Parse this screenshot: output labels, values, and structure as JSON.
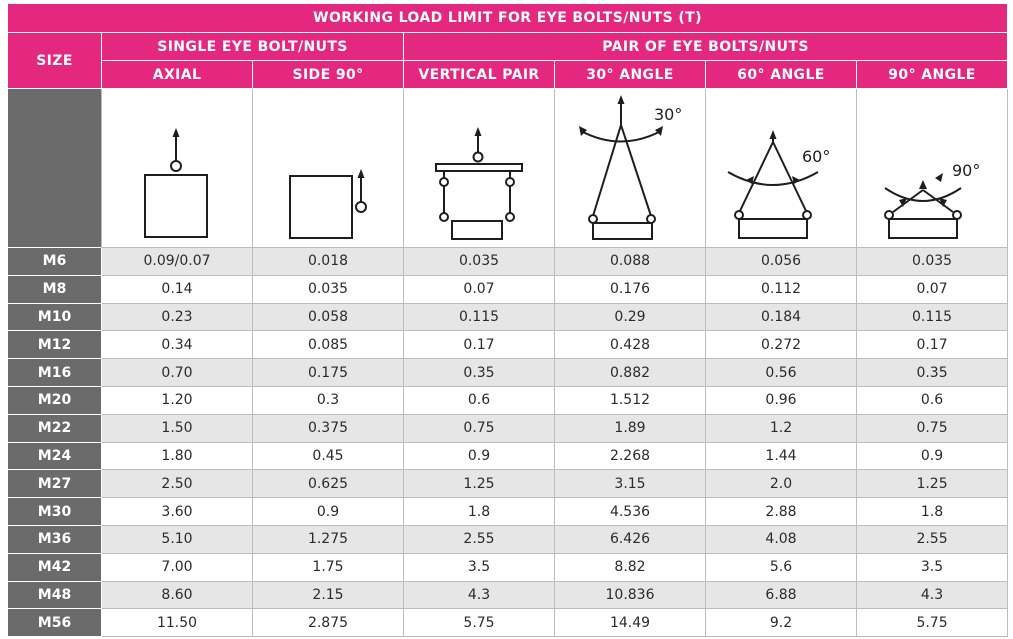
{
  "title": "WORKING LOAD LIMIT FOR EYE BOLTS/NUTS (T)",
  "size_header": "SIZE",
  "groups": {
    "single": "SINGLE EYE BOLT/NUTS",
    "pair": "PAIR OF EYE BOLTS/NUTS"
  },
  "columns": [
    "AXIAL",
    "SIDE 90°",
    "VERTICAL PAIR",
    "30° ANGLE",
    "60° ANGLE",
    "90° ANGLE"
  ],
  "diagram_labels": {
    "angle30": "30°",
    "angle60": "60°",
    "angle90": "90°"
  },
  "colors": {
    "header_bg": "#e4277f",
    "size_bg": "#6b6b6b",
    "stripe": "#e6e6e6"
  },
  "rows": [
    {
      "size": "M6",
      "values": [
        "0.09/0.07",
        "0.018",
        "0.035",
        "0.088",
        "0.056",
        "0.035"
      ]
    },
    {
      "size": "M8",
      "values": [
        "0.14",
        "0.035",
        "0.07",
        "0.176",
        "0.112",
        "0.07"
      ]
    },
    {
      "size": "M10",
      "values": [
        "0.23",
        "0.058",
        "0.115",
        "0.29",
        "0.184",
        "0.115"
      ]
    },
    {
      "size": "M12",
      "values": [
        "0.34",
        "0.085",
        "0.17",
        "0.428",
        "0.272",
        "0.17"
      ]
    },
    {
      "size": "M16",
      "values": [
        "0.70",
        "0.175",
        "0.35",
        "0.882",
        "0.56",
        "0.35"
      ]
    },
    {
      "size": "M20",
      "values": [
        "1.20",
        "0.3",
        "0.6",
        "1.512",
        "0.96",
        "0.6"
      ]
    },
    {
      "size": "M22",
      "values": [
        "1.50",
        "0.375",
        "0.75",
        "1.89",
        "1.2",
        "0.75"
      ]
    },
    {
      "size": "M24",
      "values": [
        "1.80",
        "0.45",
        "0.9",
        "2.268",
        "1.44",
        "0.9"
      ]
    },
    {
      "size": "M27",
      "values": [
        "2.50",
        "0.625",
        "1.25",
        "3.15",
        "2.0",
        "1.25"
      ]
    },
    {
      "size": "M30",
      "values": [
        "3.60",
        "0.9",
        "1.8",
        "4.536",
        "2.88",
        "1.8"
      ]
    },
    {
      "size": "M36",
      "values": [
        "5.10",
        "1.275",
        "2.55",
        "6.426",
        "4.08",
        "2.55"
      ]
    },
    {
      "size": "M42",
      "values": [
        "7.00",
        "1.75",
        "3.5",
        "8.82",
        "5.6",
        "3.5"
      ]
    },
    {
      "size": "M48",
      "values": [
        "8.60",
        "2.15",
        "4.3",
        "10.836",
        "6.88",
        "4.3"
      ]
    },
    {
      "size": "M56",
      "values": [
        "11.50",
        "2.875",
        "5.75",
        "14.49",
        "9.2",
        "5.75"
      ]
    }
  ]
}
